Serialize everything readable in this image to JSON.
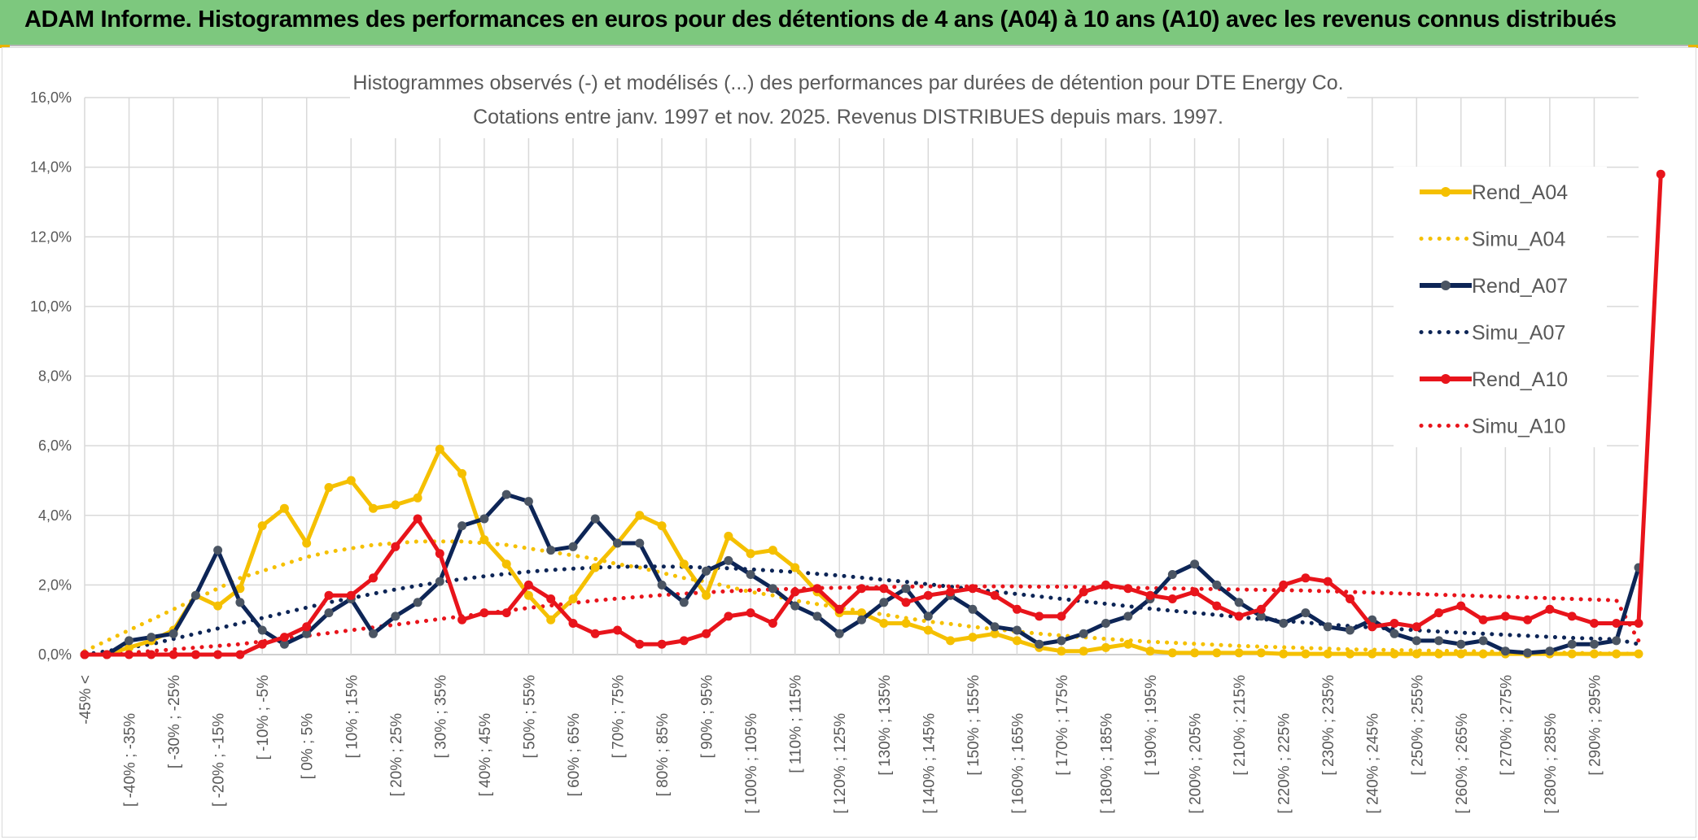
{
  "banner": {
    "title": "ADAM Informe. Histogrammes des performances en euros pour des détentions de 4 ans (A04) à 10 ans (A10) avec les revenus connus distribués"
  },
  "chart_data": {
    "type": "line",
    "title": "Histogrammes observés (-) et modélisés (...) des performances par durées de détention pour DTE Energy Co.",
    "subtitle": "Cotations entre janv. 1997 et nov. 2025. Revenus DISTRIBUES depuis mars. 1997.",
    "xlabel": "",
    "ylabel": "",
    "ylim": [
      0,
      16
    ],
    "y_ticks": [
      "0,0%",
      "2,0%",
      "4,0%",
      "6,0%",
      "8,0%",
      "10,0%",
      "12,0%",
      "14,0%",
      "16,0%"
    ],
    "grid": true,
    "legend_position": "right",
    "x_tick_labels": [
      "-45% <",
      "[ -40% ; -35%",
      "[ -30% ; -25%",
      "[ -20% ; -15%",
      "[ -10% ; -5%",
      "[ 0% ; 5%",
      "[ 10% ; 15%",
      "[ 20% ; 25%",
      "[ 30% ; 35%",
      "[ 40% ; 45%",
      "[ 50% ; 55%",
      "[ 60% ; 65%",
      "[ 70% ; 75%",
      "[ 80% ; 85%",
      "[ 90% ; 95%",
      "[ 100% ; 105%",
      "[ 110% ; 115%",
      "[ 120% ; 125%",
      "[ 130% ; 135%",
      "[ 140% ; 145%",
      "[ 150% ; 155%",
      "[ 160% ; 165%",
      "[ 170% ; 175%",
      "[ 180% ; 185%",
      "[ 190% ; 195%",
      "[ 200% ; 205%",
      "[ 210% ; 215%",
      "[ 220% ; 225%",
      "[ 230% ; 235%",
      "[ 240% ; 245%",
      "[ 250% ; 255%",
      "[ 260% ; 265%",
      "[ 270% ; 275%",
      "[ 280% ; 285%",
      "[ 290% ; 295%"
    ],
    "series": [
      {
        "name": "Rend_A04",
        "color": "#f5c000",
        "style": "solid",
        "values": [
          0,
          0,
          0.2,
          0.4,
          0.7,
          1.7,
          1.4,
          1.9,
          3.7,
          4.2,
          3.2,
          4.8,
          5.0,
          4.2,
          4.3,
          4.5,
          5.9,
          5.2,
          3.3,
          2.6,
          1.7,
          1.0,
          1.6,
          2.5,
          3.2,
          4.0,
          3.7,
          2.6,
          1.7,
          3.4,
          2.9,
          3.0,
          2.5,
          1.8,
          1.2,
          1.2,
          0.9,
          0.9,
          0.7,
          0.4,
          0.5,
          0.6,
          0.4,
          0.2,
          0.1,
          0.1,
          0.2,
          0.3,
          0.1,
          0.05,
          0.05,
          0.05,
          0.05,
          0.05,
          0.02,
          0.02,
          0.02,
          0.02,
          0.02,
          0.02,
          0.02,
          0.02,
          0.02,
          0.02,
          0.02,
          0.02,
          0.02,
          0.02,
          0.02,
          0.02,
          0.02
        ]
      },
      {
        "name": "Simu_A04",
        "color": "#f5c000",
        "style": "dotted",
        "values": [
          0.1,
          0.4,
          0.7,
          1.0,
          1.3,
          1.6,
          1.9,
          2.2,
          2.4,
          2.6,
          2.8,
          2.95,
          3.05,
          3.15,
          3.2,
          3.25,
          3.25,
          3.25,
          3.2,
          3.15,
          3.05,
          2.95,
          2.85,
          2.75,
          2.6,
          2.5,
          2.35,
          2.2,
          2.1,
          1.95,
          1.8,
          1.7,
          1.55,
          1.45,
          1.35,
          1.25,
          1.15,
          1.05,
          0.95,
          0.88,
          0.8,
          0.73,
          0.66,
          0.6,
          0.55,
          0.5,
          0.45,
          0.41,
          0.37,
          0.34,
          0.31,
          0.28,
          0.25,
          0.23,
          0.21,
          0.19,
          0.17,
          0.15,
          0.14,
          0.13,
          0.12,
          0.11,
          0.1,
          0.09,
          0.08,
          0.07,
          0.06,
          0.05,
          0.04,
          0.03,
          0.02
        ]
      },
      {
        "name": "Rend_A07",
        "color": "#0d2556",
        "style": "solid",
        "values": [
          0,
          0,
          0.4,
          0.5,
          0.6,
          1.7,
          3.0,
          1.5,
          0.7,
          0.3,
          0.6,
          1.2,
          1.6,
          0.6,
          1.1,
          1.5,
          2.1,
          3.7,
          3.9,
          4.6,
          4.4,
          3.0,
          3.1,
          3.9,
          3.2,
          3.2,
          2.0,
          1.5,
          2.4,
          2.7,
          2.3,
          1.9,
          1.4,
          1.1,
          0.6,
          1.0,
          1.5,
          1.9,
          1.1,
          1.7,
          1.3,
          0.8,
          0.7,
          0.3,
          0.4,
          0.6,
          0.9,
          1.1,
          1.6,
          2.3,
          2.6,
          2.0,
          1.5,
          1.1,
          0.9,
          1.2,
          0.8,
          0.7,
          1.0,
          0.6,
          0.4,
          0.4,
          0.3,
          0.4,
          0.1,
          0.05,
          0.1,
          0.3,
          0.3,
          0.4,
          2.5
        ]
      },
      {
        "name": "Simu_A07",
        "color": "#0d2556",
        "style": "dotted",
        "values": [
          0,
          0.1,
          0.2,
          0.3,
          0.45,
          0.6,
          0.75,
          0.9,
          1.05,
          1.2,
          1.35,
          1.5,
          1.62,
          1.75,
          1.87,
          1.98,
          2.08,
          2.17,
          2.25,
          2.32,
          2.38,
          2.43,
          2.47,
          2.5,
          2.52,
          2.53,
          2.53,
          2.52,
          2.5,
          2.48,
          2.45,
          2.41,
          2.37,
          2.32,
          2.27,
          2.21,
          2.15,
          2.09,
          2.02,
          1.95,
          1.88,
          1.81,
          1.74,
          1.67,
          1.6,
          1.53,
          1.46,
          1.39,
          1.32,
          1.26,
          1.2,
          1.14,
          1.08,
          1.02,
          0.97,
          0.92,
          0.87,
          0.82,
          0.78,
          0.74,
          0.7,
          0.66,
          0.63,
          0.6,
          0.57,
          0.54,
          0.51,
          0.48,
          0.46,
          0.44,
          0.3
        ]
      },
      {
        "name": "Rend_A10",
        "color": "#e8141b",
        "style": "solid",
        "values": [
          0,
          0,
          0,
          0,
          0,
          0,
          0,
          0,
          0.3,
          0.5,
          0.8,
          1.7,
          1.7,
          2.2,
          3.1,
          3.9,
          2.9,
          1.0,
          1.2,
          1.2,
          2.0,
          1.6,
          0.9,
          0.6,
          0.7,
          0.3,
          0.3,
          0.4,
          0.6,
          1.1,
          1.2,
          0.9,
          1.8,
          1.9,
          1.3,
          1.9,
          1.9,
          1.5,
          1.7,
          1.8,
          1.9,
          1.7,
          1.3,
          1.1,
          1.1,
          1.8,
          2.0,
          1.9,
          1.7,
          1.6,
          1.8,
          1.4,
          1.1,
          1.3,
          2.0,
          2.2,
          2.1,
          1.6,
          0.8,
          0.9,
          0.8,
          1.2,
          1.4,
          1.0,
          1.1,
          1.0,
          1.3,
          1.1,
          0.9,
          0.9,
          0.9,
          13.8
        ]
      },
      {
        "name": "Simu_A10",
        "color": "#e8141b",
        "style": "dotted",
        "values": [
          0,
          0,
          0.05,
          0.1,
          0.15,
          0.2,
          0.25,
          0.3,
          0.38,
          0.46,
          0.54,
          0.62,
          0.7,
          0.78,
          0.86,
          0.94,
          1.02,
          1.1,
          1.18,
          1.26,
          1.34,
          1.41,
          1.48,
          1.55,
          1.61,
          1.66,
          1.71,
          1.75,
          1.79,
          1.82,
          1.85,
          1.87,
          1.89,
          1.91,
          1.92,
          1.93,
          1.94,
          1.95,
          1.96,
          1.96,
          1.96,
          1.96,
          1.96,
          1.95,
          1.95,
          1.94,
          1.93,
          1.92,
          1.91,
          1.9,
          1.89,
          1.88,
          1.87,
          1.86,
          1.85,
          1.84,
          1.82,
          1.8,
          1.78,
          1.76,
          1.74,
          1.72,
          1.7,
          1.68,
          1.66,
          1.64,
          1.62,
          1.6,
          1.58,
          1.56,
          0.4
        ]
      }
    ]
  }
}
